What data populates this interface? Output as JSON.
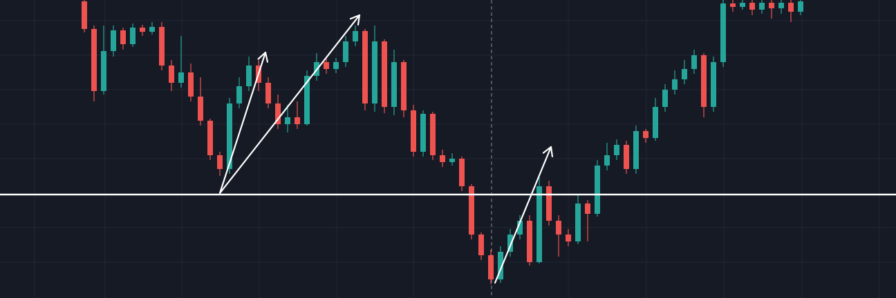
{
  "chart_data": {
    "type": "candlestick",
    "open": [
      430,
      390,
      300,
      358,
      388,
      368,
      392,
      386,
      393,
      337,
      312,
      327,
      292,
      257,
      207,
      187,
      282,
      307,
      337,
      312,
      282,
      252,
      262,
      252,
      322,
      342,
      332,
      342,
      372,
      387,
      282,
      372,
      277,
      342,
      272,
      212,
      267,
      207,
      197,
      202,
      162,
      92,
      62,
      27,
      67,
      92,
      112,
      52,
      162,
      112,
      92,
      82,
      137,
      122,
      192,
      207,
      222,
      187,
      242,
      232,
      277,
      302,
      317,
      332,
      352,
      277,
      342,
      427,
      422,
      428,
      418,
      428,
      420,
      428,
      415
    ],
    "high": [
      432,
      395,
      395,
      395,
      392,
      398,
      396,
      400,
      400,
      345,
      380,
      340,
      320,
      260,
      212,
      290,
      320,
      350,
      345,
      320,
      295,
      280,
      285,
      330,
      355,
      350,
      348,
      380,
      395,
      390,
      395,
      375,
      360,
      345,
      280,
      272,
      270,
      215,
      210,
      205,
      165,
      95,
      70,
      75,
      100,
      120,
      120,
      175,
      170,
      120,
      100,
      150,
      142,
      200,
      225,
      230,
      228,
      250,
      245,
      290,
      310,
      330,
      345,
      360,
      355,
      350,
      432,
      432,
      432,
      432,
      432,
      432,
      432,
      432,
      432
    ],
    "low": [
      385,
      285,
      295,
      350,
      360,
      364,
      380,
      382,
      330,
      300,
      305,
      285,
      250,
      200,
      177,
      180,
      275,
      300,
      300,
      275,
      245,
      240,
      245,
      250,
      315,
      325,
      326,
      335,
      365,
      272,
      270,
      268,
      265,
      262,
      205,
      205,
      200,
      190,
      192,
      155,
      85,
      55,
      20,
      22,
      60,
      85,
      47,
      50,
      105,
      60,
      75,
      78,
      82,
      118,
      185,
      200,
      180,
      180,
      225,
      228,
      270,
      295,
      310,
      325,
      262,
      270,
      335,
      415,
      418,
      410,
      412,
      405,
      412,
      400,
      410
    ],
    "close": [
      390,
      300,
      358,
      388,
      368,
      392,
      386,
      393,
      337,
      312,
      327,
      292,
      257,
      207,
      187,
      282,
      307,
      337,
      312,
      282,
      252,
      262,
      252,
      322,
      342,
      332,
      342,
      372,
      387,
      282,
      372,
      277,
      342,
      272,
      212,
      267,
      207,
      197,
      202,
      162,
      92,
      62,
      27,
      67,
      92,
      112,
      52,
      162,
      112,
      92,
      82,
      137,
      122,
      192,
      207,
      222,
      187,
      242,
      232,
      277,
      302,
      317,
      332,
      352,
      277,
      342,
      427,
      422,
      428,
      418,
      428,
      420,
      428,
      415,
      430
    ],
    "up_color": "#26a69a",
    "down_color": "#ef5350",
    "level": 150,
    "level_color": "#ffffff",
    "ylim": [
      0,
      432
    ]
  }
}
